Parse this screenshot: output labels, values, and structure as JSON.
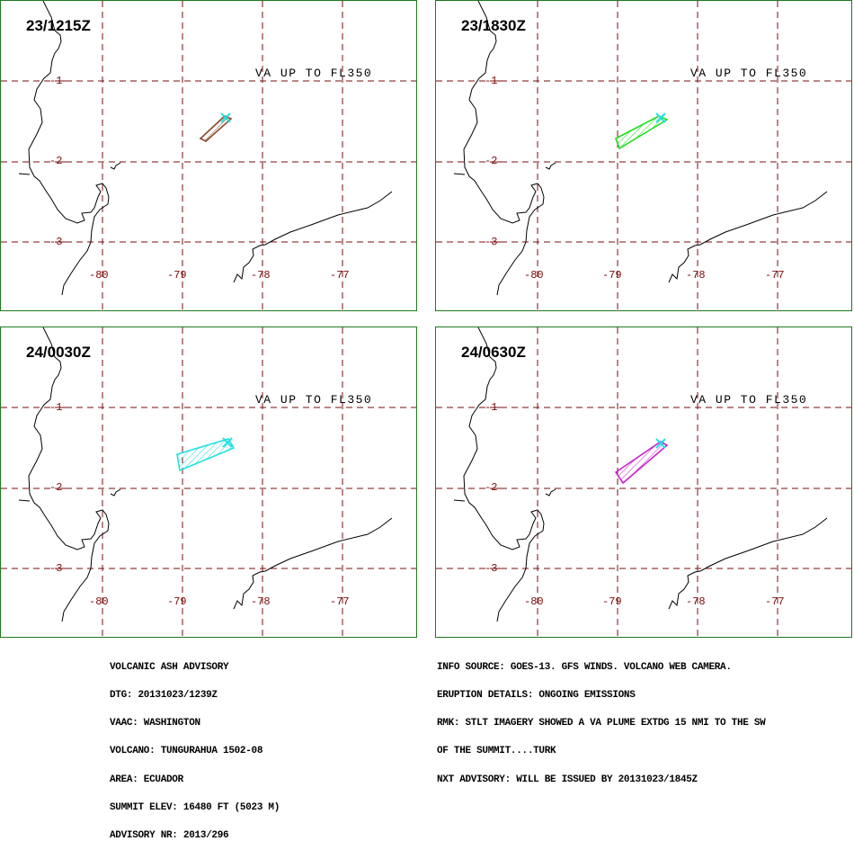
{
  "panels": [
    {
      "time": "23/1215Z",
      "fl_label": "VA UP TO FL350",
      "plume_color": "#8b4a2b"
    },
    {
      "time": "23/1830Z",
      "fl_label": "VA UP TO FL350",
      "plume_color": "#22dd22"
    },
    {
      "time": "24/0030Z",
      "fl_label": "VA UP TO FL350",
      "plume_color": "#22e0e0"
    },
    {
      "time": "24/0630Z",
      "fl_label": "VA UP TO FL350",
      "plume_color": "#cc22cc"
    }
  ],
  "lat_labels": [
    "-1",
    "-2",
    "-3"
  ],
  "lon_labels": [
    "-80",
    "-79",
    "-78",
    "-77"
  ],
  "colors": {
    "grid": "#7a0c0c",
    "frame": "#1e7a1e",
    "vent": "#22e0e0",
    "coast": "#000000"
  },
  "advisory_left": [
    "VOLCANIC ASH ADVISORY",
    "DTG: 20131023/1239Z",
    "VAAC: WASHINGTON",
    "VOLCANO: TUNGURAHUA 1502-08",
    "AREA: ECUADOR",
    "SUMMIT ELEV: 16480 FT (5023 M)",
    "ADVISORY NR: 2013/296"
  ],
  "advisory_right": [
    "INFO SOURCE: GOES-13. GFS WINDS. VOLCANO WEB CAMERA.",
    "ERUPTION DETAILS: ONGOING EMISSIONS",
    "RMK: STLT IMAGERY SHOWED A VA PLUME EXTDG 15 NMI TO THE SW",
    "OF THE SUMMIT....TURK",
    "NXT ADVISORY: WILL BE ISSUED BY 20131023/1845Z"
  ]
}
